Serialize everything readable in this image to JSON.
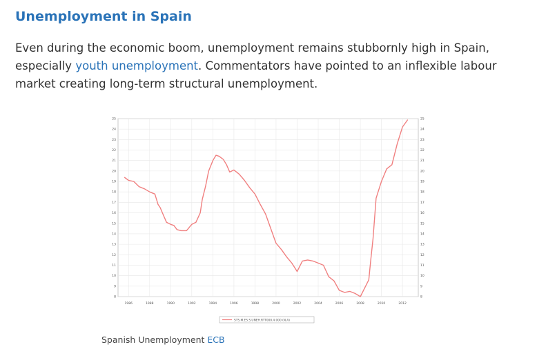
{
  "article": {
    "title": "Unemployment in Spain",
    "paragraph_before_link": "Even during the economic boom, unemployment remains stubbornly high in Spain, especially ",
    "link_text": "youth unemployment",
    "paragraph_after_link": ". Commentators have pointed to an inflexible labour market creating long-term structural unemployment.",
    "caption_text": "Spanish Unemployment ",
    "caption_link": "ECB"
  },
  "colors": {
    "accent": "#2a73b8",
    "line": "#f08080"
  },
  "chart_data": {
    "type": "line",
    "title": "",
    "xlabel": "",
    "ylabel": "",
    "xlim": [
      1985,
      2013.5
    ],
    "ylim": [
      8,
      25
    ],
    "x_ticks": [
      "1986",
      "1988",
      "1990",
      "1992",
      "1994",
      "1996",
      "1998",
      "2000",
      "2002",
      "2004",
      "2006",
      "2008",
      "2010",
      "2012"
    ],
    "y_ticks": [
      "8",
      "9",
      "10",
      "11",
      "12",
      "13",
      "14",
      "15",
      "16",
      "17",
      "18",
      "19",
      "20",
      "21",
      "22",
      "23",
      "24",
      "25"
    ],
    "legend": "STS.M.ES.S.UNEH.RTT000.4.000 (N.A)",
    "series": [
      {
        "name": "STS.M.ES.S.UNEH.RTT000.4.000 (N.A)",
        "x": [
          1985.6,
          1986.0,
          1986.5,
          1987.0,
          1987.5,
          1988.0,
          1988.5,
          1988.8,
          1989.0,
          1989.3,
          1989.6,
          1990.0,
          1990.3,
          1990.6,
          1991.0,
          1991.5,
          1992.0,
          1992.4,
          1992.8,
          1993.0,
          1993.3,
          1993.6,
          1994.0,
          1994.3,
          1994.6,
          1995.0,
          1995.3,
          1995.6,
          1996.0,
          1996.5,
          1997.0,
          1997.5,
          1998.0,
          1998.5,
          1999.0,
          1999.5,
          2000.0,
          2000.5,
          2001.0,
          2001.5,
          2002.0,
          2002.5,
          2003.0,
          2003.5,
          2004.0,
          2004.5,
          2005.0,
          2005.5,
          2006.0,
          2006.5,
          2007.0,
          2007.5,
          2008.0,
          2008.5,
          2008.8,
          2009.0,
          2009.2,
          2009.5,
          2010.0,
          2010.5,
          2011.0,
          2011.5,
          2012.0,
          2012.5
        ],
        "values": [
          19.4,
          19.1,
          19.0,
          18.5,
          18.3,
          18.0,
          17.8,
          16.8,
          16.5,
          15.8,
          15.1,
          14.9,
          14.8,
          14.4,
          14.3,
          14.3,
          14.9,
          15.1,
          16.0,
          17.3,
          18.5,
          20.0,
          21.0,
          21.5,
          21.4,
          21.1,
          20.6,
          19.9,
          20.1,
          19.7,
          19.1,
          18.4,
          17.8,
          16.8,
          15.9,
          14.5,
          13.1,
          12.5,
          11.8,
          11.2,
          10.4,
          11.4,
          11.5,
          11.4,
          11.2,
          11.0,
          9.9,
          9.5,
          8.6,
          8.4,
          8.5,
          8.3,
          8.0,
          9.0,
          9.6,
          11.6,
          13.5,
          17.4,
          19.0,
          20.2,
          20.6,
          22.6,
          24.2,
          24.9
        ]
      }
    ]
  }
}
